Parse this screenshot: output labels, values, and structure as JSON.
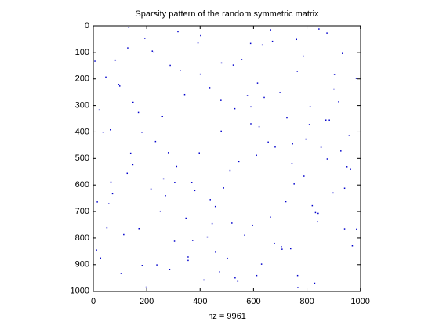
{
  "chart_data": {
    "type": "spy",
    "title": "Sparsity pattern of the random symmetric matrix",
    "xlabel": "nz = 9961",
    "color": "#0000cc",
    "xlim": [
      0,
      1001
    ],
    "ylim": [
      0,
      1001
    ],
    "y_reversed": true,
    "xticks": [
      0,
      200,
      400,
      600,
      800,
      1000
    ],
    "yticks": [
      0,
      100,
      200,
      300,
      400,
      500,
      600,
      700,
      800,
      900,
      1000
    ],
    "x": [
      12,
      37,
      58,
      83,
      104,
      127,
      149,
      171,
      193,
      216,
      238,
      259,
      281,
      304,
      326,
      347,
      369,
      392,
      414,
      436,
      457,
      479,
      502,
      524,
      545,
      567,
      590,
      612,
      633,
      655,
      678,
      699,
      721,
      744,
      766,
      787,
      809,
      832,
      853,
      875,
      898,
      919,
      941,
      963,
      985,
      22,
      66,
      95,
      140,
      183,
      227,
      270,
      312,
      355,
      401,
      445,
      488,
      531,
      577,
      621,
      664,
      707,
      752,
      796,
      840,
      884,
      927,
      970,
      6,
      51,
      845,
      402,
      671,
      129,
      933,
      556,
      288,
      764,
      47,
      615,
      901,
      342,
      478,
      812,
      169,
      725,
      590,
      64,
      958,
      233,
      681,
      397,
      876,
      148,
      512,
      789,
      305,
      941,
      72,
      438,
      820,
      251,
      663,
      519,
      986,
      114,
      372,
      704,
      458,
      27,
      630,
      286,
      765,
      541,
      198,
      317,
      589,
      221,
      480,
      903,
      99,
      640,
      530,
      871,
      182,
      746,
      611,
      950,
      263,
      380,
      15,
      842,
      596,
      427,
      739,
      355,
      472,
      829,
      133,
      761
    ],
    "y": [
      845,
      402,
      671,
      129,
      933,
      556,
      288,
      764,
      47,
      615,
      901,
      342,
      478,
      812,
      169,
      725,
      590,
      64,
      958,
      233,
      681,
      397,
      876,
      148,
      512,
      789,
      305,
      941,
      72,
      438,
      820,
      251,
      663,
      519,
      986,
      114,
      372,
      704,
      458,
      27,
      630,
      286,
      765,
      541,
      198,
      317,
      589,
      221,
      480,
      903,
      99,
      640,
      530,
      871,
      182,
      746,
      611,
      950,
      263,
      380,
      15,
      842,
      596,
      427,
      739,
      355,
      472,
      829,
      133,
      761,
      12,
      37,
      58,
      83,
      104,
      127,
      149,
      171,
      193,
      216,
      238,
      259,
      281,
      304,
      326,
      347,
      369,
      392,
      414,
      436,
      457,
      479,
      502,
      524,
      545,
      567,
      590,
      612,
      633,
      655,
      678,
      699,
      721,
      744,
      766,
      787,
      809,
      832,
      853,
      875,
      898,
      919,
      941,
      963,
      985,
      22,
      66,
      95,
      140,
      183,
      227,
      270,
      312,
      355,
      401,
      445,
      488,
      531,
      577,
      621,
      664,
      707,
      752,
      796,
      840,
      884,
      927,
      970,
      6,
      51
    ]
  }
}
